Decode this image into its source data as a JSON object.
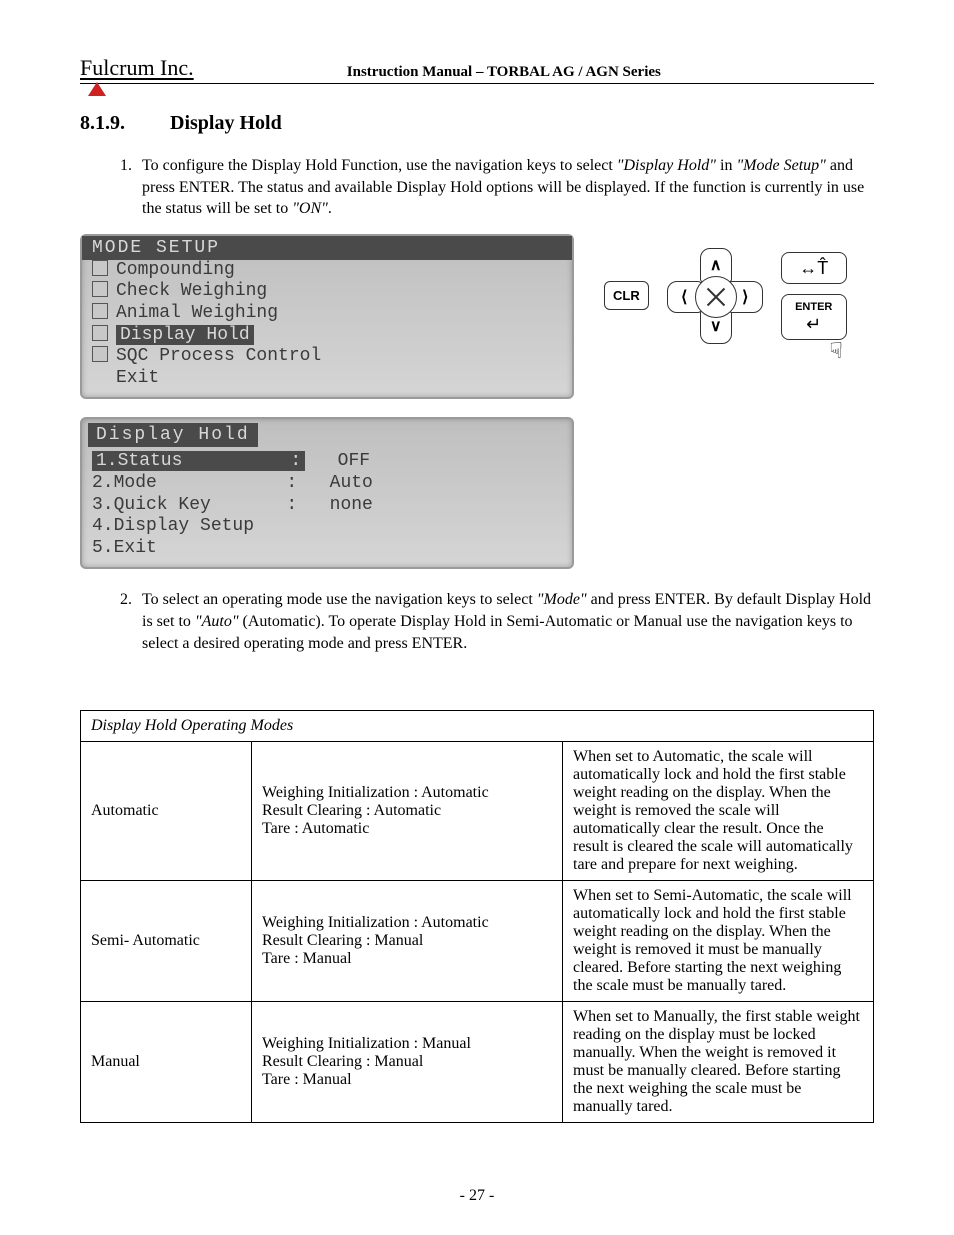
{
  "header": {
    "logo": "Fulcrum Inc.",
    "manual_title": "Instruction Manual – TORBAL AG / AGN Series"
  },
  "section": {
    "number": "8.1.9.",
    "title": "Display Hold"
  },
  "step1": {
    "prefix": "To configure the Display Hold Function, use the navigation keys to select ",
    "q1": "\"Display Hold\"",
    "mid1": " in ",
    "q2": "\"Mode Setup\"",
    "mid2": " and press ENTER. The status and available Display Hold options will be displayed. If the function is currently in use the status will be set to ",
    "q3": "\"ON\"",
    "end": "."
  },
  "lcd1": {
    "title": "MODE SETUP",
    "items": [
      "Compounding",
      "Check Weighing",
      "Animal Weighing",
      "Display Hold",
      "SQC Process Control",
      "Exit"
    ],
    "selected_index": 3
  },
  "lcd2": {
    "title": "Display Hold",
    "rows": [
      {
        "n": "1",
        "label": "Status",
        "value": "OFF",
        "sel": true
      },
      {
        "n": "2",
        "label": "Mode",
        "value": "Auto",
        "sel": false
      },
      {
        "n": "3",
        "label": "Quick Key",
        "value": "none",
        "sel": false
      },
      {
        "n": "4",
        "label": "Display Setup",
        "value": "",
        "sel": false
      },
      {
        "n": "5",
        "label": "Exit",
        "value": "",
        "sel": false
      }
    ]
  },
  "keypad": {
    "clr": "CLR",
    "tare_sym": "↔T̂",
    "enter_label": "ENTER",
    "enter_sym": "↵",
    "up": "∧",
    "down": "∨",
    "left": "⟨",
    "right": "⟩"
  },
  "step2": {
    "prefix": "To select an operating mode use the navigation keys to select ",
    "q1": "\"Mode\"",
    "mid1": " and press ENTER. By default Display Hold is set to ",
    "q2": "\"Auto\"",
    "mid2": " (Automatic). To operate Display Hold in Semi-Automatic or Manual use the navigation keys to select a desired operating mode and press ENTER."
  },
  "table": {
    "caption": "Display Hold Operating Modes",
    "rows": [
      {
        "mode": "Automatic",
        "params": "Weighing Initialization : Automatic\nResult Clearing : Automatic\nTare : Automatic",
        "desc": "When set to Automatic, the scale will automatically lock and hold the first stable weight reading on the display. When the weight is removed the scale will automatically clear the result. Once the result is cleared the scale will automatically tare and prepare for next weighing."
      },
      {
        "mode": "Semi- Automatic",
        "params": "Weighing Initialization : Automatic\nResult Clearing : Manual\nTare :  Manual",
        "desc": "When set to Semi-Automatic, the scale will automatically lock and hold the first stable weight reading on the display. When the weight is removed it must be manually cleared. Before starting the next weighing the scale must be manually tared."
      },
      {
        "mode": "Manual",
        "params": "Weighing Initialization : Manual\nResult Clearing : Manual\nTare :  Manual",
        "desc": "When set to Manually, the first stable weight reading on the display must be locked manually. When the weight is removed it must be manually cleared. Before starting the next weighing the scale must be manually tared."
      }
    ]
  },
  "page_number": "- 27 -"
}
